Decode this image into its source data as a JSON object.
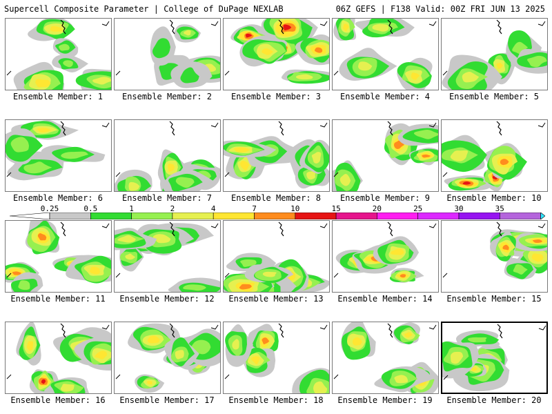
{
  "header": {
    "title_left": "Supercell Composite Parameter | College of DuPage NEXLAB",
    "title_right": "06Z GEFS | F138 Valid: 00Z FRI JUN 13 2025"
  },
  "label_prefix": "Ensemble Member: ",
  "members": [
    {
      "id": 1,
      "label": "Ensemble Member: 1",
      "max_level": "5"
    },
    {
      "id": 2,
      "label": "Ensemble Member: 2",
      "max_level": "2"
    },
    {
      "id": 3,
      "label": "Ensemble Member: 3",
      "max_level": "10"
    },
    {
      "id": 4,
      "label": "Ensemble Member: 4",
      "max_level": "4"
    },
    {
      "id": 5,
      "label": "Ensemble Member: 5",
      "max_level": "5"
    },
    {
      "id": 6,
      "label": "Ensemble Member: 6",
      "max_level": "4"
    },
    {
      "id": 7,
      "label": "Ensemble Member: 7",
      "max_level": "4"
    },
    {
      "id": 8,
      "label": "Ensemble Member: 8",
      "max_level": "5"
    },
    {
      "id": 9,
      "label": "Ensemble Member: 9",
      "max_level": "7"
    },
    {
      "id": 10,
      "label": "Ensemble Member: 10",
      "max_level": "10"
    },
    {
      "id": 11,
      "label": "Ensemble Member: 11",
      "max_level": "7"
    },
    {
      "id": 12,
      "label": "Ensemble Member: 12",
      "max_level": "4"
    },
    {
      "id": 13,
      "label": "Ensemble Member: 13",
      "max_level": "7"
    },
    {
      "id": 14,
      "label": "Ensemble Member: 14",
      "max_level": "10"
    },
    {
      "id": 15,
      "label": "Ensemble Member: 15",
      "max_level": "7"
    },
    {
      "id": 16,
      "label": "Ensemble Member: 16",
      "max_level": "10"
    },
    {
      "id": 17,
      "label": "Ensemble Member: 17",
      "max_level": "7"
    },
    {
      "id": 18,
      "label": "Ensemble Member: 18",
      "max_level": "7"
    },
    {
      "id": 19,
      "label": "Ensemble Member: 19",
      "max_level": "7"
    },
    {
      "id": 20,
      "label": "Ensemble Member: 20",
      "max_level": "7"
    }
  ],
  "selected_member": 20,
  "colorbar": {
    "labels": [
      "0.25",
      "0.5",
      "1",
      "2",
      "4",
      "7",
      "10",
      "15",
      "20",
      "25",
      "30",
      "35"
    ],
    "colors": [
      "#c8c8c8",
      "#32dc32",
      "#96f050",
      "#e6f050",
      "#ffe632",
      "#ff8c1e",
      "#e61414",
      "#e6148c",
      "#ff1ef0",
      "#dc28ff",
      "#9614f0",
      "#b464dc",
      "#32e6ff"
    ],
    "cap_left_color": "#ffffff"
  }
}
